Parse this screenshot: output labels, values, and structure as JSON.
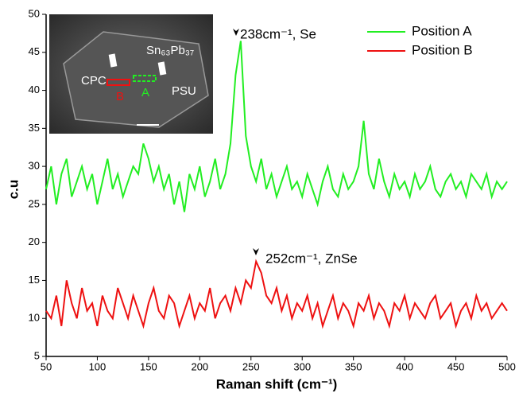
{
  "chart_data": {
    "type": "line",
    "x_label": "Raman shift (cm⁻¹)",
    "y_label": "c.u",
    "xlim": [
      50,
      500
    ],
    "xticks": [
      50,
      100,
      150,
      200,
      250,
      300,
      350,
      400,
      450,
      500
    ],
    "ylim": [
      5,
      50
    ],
    "yticks": [
      5,
      10,
      15,
      20,
      25,
      30,
      35,
      40,
      45,
      50
    ],
    "legend": "top-right",
    "annotations": [
      "238cm⁻¹, Se",
      "252cm⁻¹, ZnSe"
    ],
    "inset": {
      "labels": [
        "CPC",
        "Sn₆₃Pb₃₇",
        "PSU",
        "B",
        "A"
      ]
    },
    "x": [
      50,
      55,
      60,
      65,
      70,
      75,
      80,
      85,
      90,
      95,
      100,
      105,
      110,
      115,
      120,
      125,
      130,
      135,
      140,
      145,
      150,
      155,
      160,
      165,
      170,
      175,
      180,
      185,
      190,
      195,
      200,
      205,
      210,
      215,
      220,
      225,
      230,
      235,
      240,
      245,
      250,
      255,
      260,
      265,
      270,
      275,
      280,
      285,
      290,
      295,
      300,
      305,
      310,
      315,
      320,
      325,
      330,
      335,
      340,
      345,
      350,
      355,
      360,
      365,
      370,
      375,
      380,
      385,
      390,
      395,
      400,
      405,
      410,
      415,
      420,
      425,
      430,
      435,
      440,
      445,
      450,
      455,
      460,
      465,
      470,
      475,
      480,
      485,
      490,
      495,
      500
    ],
    "series": [
      {
        "name": "Position A",
        "color": "#22ee22",
        "values": [
          27,
          30,
          25,
          29,
          31,
          26,
          28,
          30,
          27,
          29,
          25,
          28,
          31,
          27,
          29,
          26,
          28,
          30,
          29,
          33,
          31,
          28,
          30,
          27,
          29,
          25,
          28,
          24,
          29,
          27,
          30,
          26,
          28,
          31,
          27,
          29,
          33,
          42,
          46.5,
          34,
          30,
          28,
          31,
          27,
          29,
          26,
          28,
          30,
          27,
          28,
          26,
          29,
          27,
          25,
          28,
          30,
          27,
          26,
          29,
          27,
          28,
          30,
          36,
          29,
          27,
          31,
          28,
          26,
          29,
          27,
          28,
          26,
          29,
          27,
          28,
          30,
          27,
          26,
          28,
          29,
          27,
          28,
          26,
          29,
          28,
          27,
          29,
          26,
          28,
          27,
          28
        ]
      },
      {
        "name": "Position B",
        "color": "#ee1111",
        "values": [
          11,
          10,
          13,
          9,
          15,
          12,
          10,
          14,
          11,
          12,
          9,
          13,
          11,
          10,
          14,
          12,
          10,
          13,
          11,
          9,
          12,
          14,
          11,
          10,
          13,
          12,
          9,
          11,
          13,
          10,
          12,
          11,
          14,
          10,
          12,
          13,
          11,
          14,
          12,
          15,
          14,
          17.5,
          16,
          13,
          12,
          14,
          11,
          13,
          10,
          12,
          11,
          13,
          10,
          12,
          9,
          11,
          13,
          10,
          12,
          11,
          9,
          12,
          11,
          13,
          10,
          12,
          11,
          9,
          12,
          11,
          13,
          10,
          12,
          11,
          10,
          12,
          13,
          10,
          11,
          12,
          9,
          11,
          12,
          10,
          13,
          11,
          12,
          10,
          11,
          12,
          11
        ]
      }
    ]
  }
}
